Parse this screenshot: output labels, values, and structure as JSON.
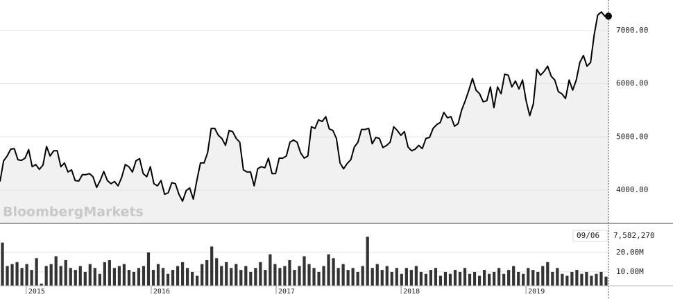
{
  "chart_data": [
    {
      "type": "line",
      "watermark": "BloombergMarkets",
      "color": "#000000",
      "area_color": "#f1f1f1",
      "ylim": [
        3374,
        7574
      ],
      "yticks": [
        {
          "value": 4000,
          "label": "4000.00"
        },
        {
          "value": 5000,
          "label": "5000.00"
        },
        {
          "value": 6000,
          "label": "6000.00"
        },
        {
          "value": 7000,
          "label": "7000.00"
        }
      ],
      "grid": true,
      "values": [
        4160,
        4550,
        4640,
        4770,
        4780,
        4570,
        4560,
        4600,
        4760,
        4440,
        4480,
        4390,
        4470,
        4820,
        4640,
        4740,
        4740,
        4440,
        4510,
        4340,
        4380,
        4180,
        4170,
        4290,
        4290,
        4310,
        4250,
        4050,
        4180,
        4350,
        4180,
        4120,
        4160,
        4080,
        4240,
        4480,
        4440,
        4340,
        4550,
        4590,
        4310,
        4250,
        4440,
        4120,
        4080,
        4180,
        3920,
        3950,
        4140,
        4120,
        3920,
        3790,
        3990,
        4040,
        3830,
        4180,
        4510,
        4510,
        4700,
        5160,
        5160,
        5030,
        4970,
        4840,
        5120,
        5100,
        4970,
        4900,
        4380,
        4340,
        4340,
        4080,
        4400,
        4440,
        4420,
        4600,
        4310,
        4310,
        4600,
        4600,
        4640,
        4900,
        4940,
        4900,
        4700,
        4600,
        4640,
        5190,
        5160,
        5320,
        5290,
        5380,
        5150,
        5120,
        4970,
        4510,
        4400,
        4500,
        4570,
        4810,
        4900,
        5140,
        5140,
        5160,
        4870,
        4990,
        4970,
        4800,
        4840,
        4900,
        5190,
        5120,
        5030,
        5100,
        4810,
        4740,
        4770,
        4840,
        4780,
        4970,
        4990,
        5160,
        5230,
        5270,
        5460,
        5360,
        5380,
        5200,
        5250,
        5510,
        5680,
        5880,
        6100,
        5880,
        5810,
        5660,
        5680,
        5940,
        5550,
        5940,
        5810,
        6180,
        6160,
        5940,
        6050,
        5900,
        6070,
        5680,
        5400,
        5620,
        6270,
        6160,
        6230,
        6330,
        6140,
        6070,
        5850,
        5810,
        5720,
        6070,
        5880,
        6070,
        6400,
        6530,
        6330,
        6400,
        6920,
        7290,
        7350,
        7270,
        7270
      ]
    },
    {
      "type": "bar",
      "color": "#333333",
      "annotations": [
        "09/06",
        "7,582,270"
      ],
      "ylim": [
        2.86,
        32
      ],
      "yticks": [
        {
          "value": 10,
          "label": "10.00M"
        },
        {
          "value": 20,
          "label": "20.00M"
        }
      ],
      "grid": true,
      "xlim": [
        2014.79,
        2019.66
      ],
      "xticks": [
        2015,
        2016,
        2017,
        2018,
        2019
      ],
      "values": [
        25,
        13,
        14,
        15,
        12,
        14,
        11,
        17,
        4,
        13,
        14,
        18,
        13,
        16,
        12,
        11,
        13,
        10,
        14,
        12,
        9,
        15,
        16,
        12,
        13,
        14,
        11,
        10,
        12,
        13,
        20,
        11,
        14,
        12,
        9,
        11,
        13,
        15,
        12,
        10,
        8,
        14,
        16,
        23,
        17,
        13,
        15,
        12,
        14,
        11,
        13,
        10,
        12,
        15,
        11,
        19,
        14,
        12,
        13,
        16,
        11,
        13,
        18,
        14,
        12,
        10,
        13,
        19,
        17,
        12,
        14,
        11,
        12,
        10,
        13,
        28,
        12,
        14,
        11,
        13,
        10,
        12,
        9,
        12,
        11,
        13,
        10,
        9,
        11,
        12,
        8,
        10,
        9,
        11,
        10,
        12,
        9,
        10,
        8,
        11,
        9,
        10,
        12,
        9,
        11,
        13,
        10,
        9,
        12,
        11,
        10,
        13,
        15,
        10,
        12,
        9,
        8,
        10,
        11,
        9,
        10,
        8,
        9,
        10,
        7.58
      ]
    }
  ]
}
